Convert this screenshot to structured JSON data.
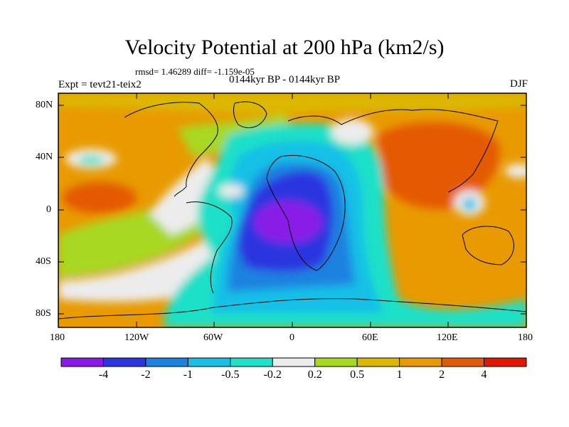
{
  "title": "Velocity Potential at 200 hPa (km2/s)",
  "stats": "rmsd= 1.46289 diff= -1.159e-05",
  "left_label": "Expt = tevt21-teix2",
  "center_label": "0144kyr BP - 0144kyr BP",
  "right_label": "DJF",
  "lat_ticks": [
    "80N",
    "40N",
    "0",
    "40S",
    "80S"
  ],
  "lon_ticks": [
    "180",
    "120W",
    "60W",
    "0",
    "60E",
    "120E",
    "180"
  ],
  "colorbar": {
    "colors": [
      "#8a1ae8",
      "#2b36e0",
      "#1a82e0",
      "#18c0e6",
      "#1fe0c8",
      "#ececec",
      "#a8d820",
      "#dcb800",
      "#e89a00",
      "#e45a00",
      "#e01800"
    ],
    "labels": [
      "-4",
      "-2",
      "-1",
      "-0.5",
      "-0.2",
      "0.2",
      "0.5",
      "1",
      "2",
      "4"
    ]
  }
}
